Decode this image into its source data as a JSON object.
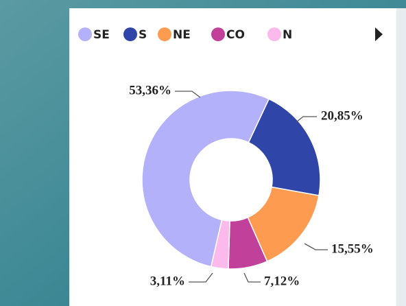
{
  "chart_data": {
    "type": "donut",
    "categories": [
      "SE",
      "S",
      "NE",
      "CO",
      "N"
    ],
    "values": [
      53.36,
      20.85,
      15.55,
      7.12,
      3.11
    ],
    "value_labels": [
      "53,36%",
      "20,85%",
      "15,55%",
      "7,12%",
      "3,11%"
    ],
    "colors": [
      "#b4b1fb",
      "#2f46a8",
      "#fd9b50",
      "#c0409a",
      "#fcb9ec"
    ],
    "legend": "top"
  }
}
